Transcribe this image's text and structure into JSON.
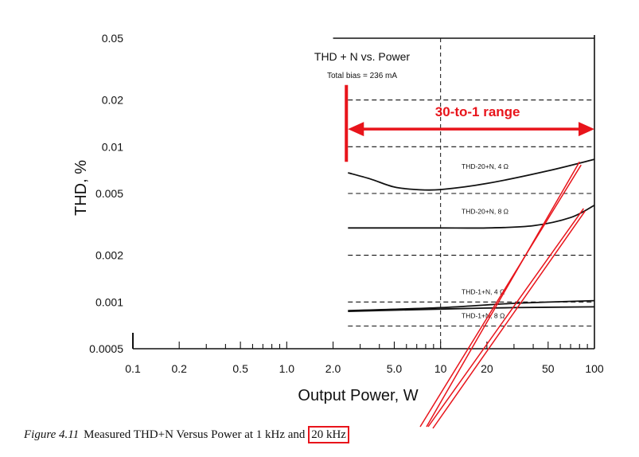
{
  "chart_data": {
    "type": "line",
    "title": "THD + N vs. Power",
    "subtitle": "Total bias = 236 mA",
    "xlabel": "Output Power, W",
    "ylabel": "THD, %",
    "x_scale": "log",
    "y_scale": "log",
    "xlim": [
      0.1,
      100
    ],
    "ylim": [
      0.0005,
      0.05
    ],
    "x_ticks": [
      {
        "value": 0.1,
        "label": "0.1"
      },
      {
        "value": 0.2,
        "label": "0.2"
      },
      {
        "value": 0.5,
        "label": "0.5"
      },
      {
        "value": 1,
        "label": "1.0"
      },
      {
        "value": 2,
        "label": "2.0"
      },
      {
        "value": 5,
        "label": "5.0"
      },
      {
        "value": 10,
        "label": "10"
      },
      {
        "value": 20,
        "label": "20"
      },
      {
        "value": 50,
        "label": "50"
      },
      {
        "value": 100,
        "label": "100"
      }
    ],
    "y_ticks": [
      {
        "value": 0.05,
        "label": "0.05"
      },
      {
        "value": 0.02,
        "label": "0.02"
      },
      {
        "value": 0.01,
        "label": "0.01"
      },
      {
        "value": 0.005,
        "label": "0.005"
      },
      {
        "value": 0.002,
        "label": "0.002"
      },
      {
        "value": 0.001,
        "label": "0.001"
      },
      {
        "value": 0.0005,
        "label": "0.0005"
      }
    ],
    "grid": "dashed horizontal lines and a vertical line at 10 W, over the 2.5–100 W region",
    "series": [
      {
        "name": "THD-20+N, 4 Ω",
        "x": [
          2.5,
          3.5,
          5,
          7,
          10,
          20,
          50,
          100
        ],
        "y": [
          0.0068,
          0.0062,
          0.0055,
          0.0053,
          0.0053,
          0.0058,
          0.007,
          0.0083
        ]
      },
      {
        "name": "THD-20+N, 8 Ω",
        "x": [
          2.5,
          5,
          10,
          20,
          40,
          70,
          100
        ],
        "y": [
          0.003,
          0.003,
          0.003,
          0.003,
          0.0031,
          0.0035,
          0.0042
        ]
      },
      {
        "name": "THD-1+N, 4 Ω",
        "x": [
          2.5,
          10,
          30,
          100
        ],
        "y": [
          0.00088,
          0.00092,
          0.00098,
          0.00102
        ]
      },
      {
        "name": "THD-1+N, 8 Ω",
        "x": [
          2.5,
          10,
          30,
          100
        ],
        "y": [
          0.00087,
          0.0009,
          0.00092,
          0.00093
        ]
      }
    ],
    "annotations": [
      {
        "text": "30-to-1 range"
      }
    ]
  },
  "colors": {
    "annotation": "#e8141b",
    "line": "#111111"
  },
  "caption": {
    "figure_label": "Figure 4.11",
    "text_before": "Measured THD+N Versus Power at 1 kHz and",
    "highlight": "20 kHz"
  }
}
